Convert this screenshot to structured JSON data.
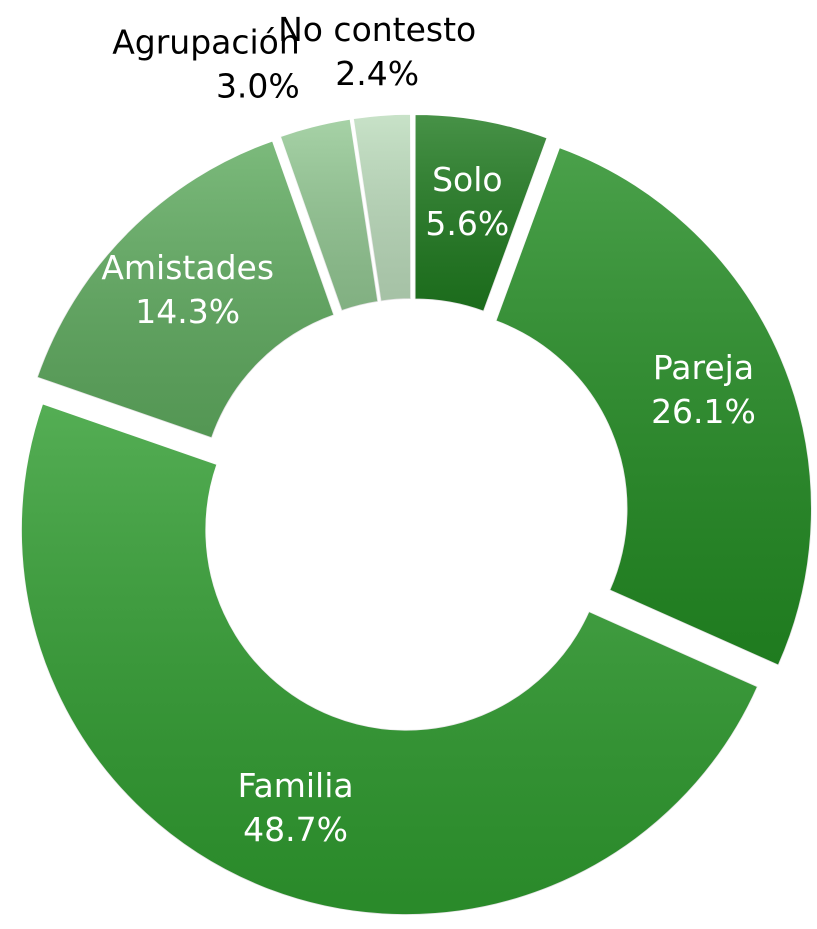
{
  "chart_data": {
    "type": "donut",
    "categories": [
      "Solo",
      "Pareja",
      "Familia",
      "Amistades",
      "Agrupación",
      "No contesto"
    ],
    "values": [
      5.6,
      26.1,
      48.7,
      14.3,
      3.0,
      2.4
    ],
    "value_labels": [
      "5.6%",
      "26.1%",
      "48.7%",
      "14.3%",
      "3.0%",
      "2.4%"
    ],
    "colors": [
      "#1f7a1f",
      "#238c23",
      "#2f9c2f",
      "#5fab5f",
      "#93c893",
      "#bcdcbc"
    ]
  }
}
